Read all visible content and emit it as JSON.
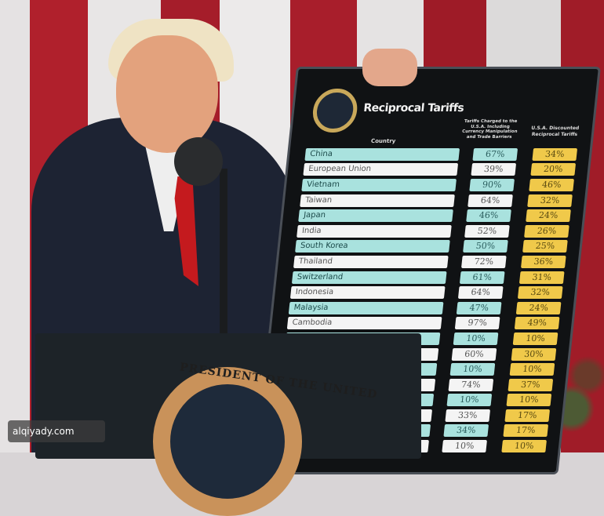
{
  "board": {
    "title": "Reciprocal Tariffs",
    "headers": {
      "country": "Country",
      "charged": "Tariffs Charged to the U.S.A. Including Currency Manipulation and Trade Barriers",
      "discounted": "U.S.A. Discounted Reciprocal Tariffs"
    },
    "rows": [
      {
        "country": "China",
        "charged": "67%",
        "discounted": "34%"
      },
      {
        "country": "European Union",
        "charged": "39%",
        "discounted": "20%"
      },
      {
        "country": "Vietnam",
        "charged": "90%",
        "discounted": "46%"
      },
      {
        "country": "Taiwan",
        "charged": "64%",
        "discounted": "32%"
      },
      {
        "country": "Japan",
        "charged": "46%",
        "discounted": "24%"
      },
      {
        "country": "India",
        "charged": "52%",
        "discounted": "26%"
      },
      {
        "country": "South Korea",
        "charged": "50%",
        "discounted": "25%"
      },
      {
        "country": "Thailand",
        "charged": "72%",
        "discounted": "36%"
      },
      {
        "country": "Switzerland",
        "charged": "61%",
        "discounted": "31%"
      },
      {
        "country": "Indonesia",
        "charged": "64%",
        "discounted": "32%"
      },
      {
        "country": "Malaysia",
        "charged": "47%",
        "discounted": "24%"
      },
      {
        "country": "Cambodia",
        "charged": "97%",
        "discounted": "49%"
      },
      {
        "country": "",
        "charged": "10%",
        "discounted": "10%"
      },
      {
        "country": "",
        "charged": "60%",
        "discounted": "30%"
      },
      {
        "country": "",
        "charged": "10%",
        "discounted": "10%"
      },
      {
        "country": "",
        "charged": "74%",
        "discounted": "37%"
      },
      {
        "country": "",
        "charged": "10%",
        "discounted": "10%"
      },
      {
        "country": "",
        "charged": "33%",
        "discounted": "17%"
      },
      {
        "country": "",
        "charged": "34%",
        "discounted": "17%"
      },
      {
        "country": "",
        "charged": "10%",
        "discounted": "10%"
      }
    ]
  },
  "podium": {
    "seal_text": "PRESIDENT OF THE UNITED"
  },
  "watermark": "alqiyady.com",
  "colors": {
    "teal_row": "#a9e2de",
    "white_row": "#f4f4f4",
    "gold_cell": "#f0c94a",
    "flag_red": "#a81e2b"
  }
}
